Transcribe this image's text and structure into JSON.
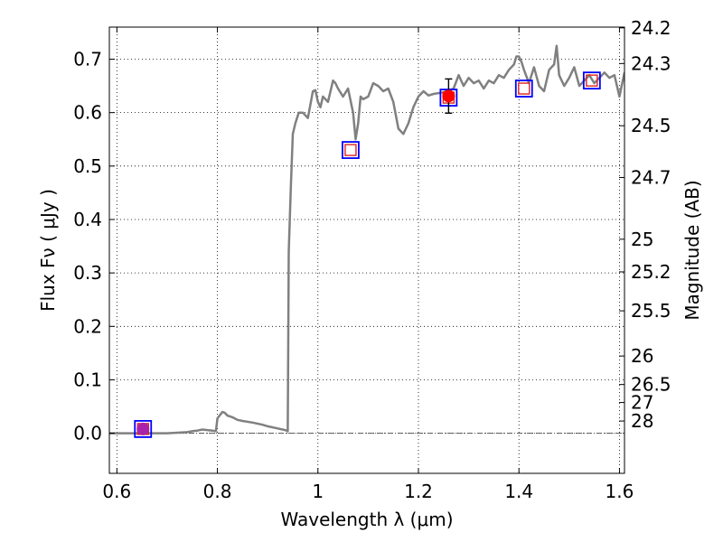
{
  "chart_data": {
    "type": "line",
    "xlabel": "Wavelength  λ (μm)",
    "ylabel": "Flux  Fν  ( μJy )",
    "ylabel_right": "Magnitude (AB)",
    "xlim": [
      0.585,
      1.61
    ],
    "ylim": [
      -0.075,
      0.76
    ],
    "grid": true,
    "x_ticks": [
      {
        "value": 0.6,
        "label": "0.6"
      },
      {
        "value": 0.8,
        "label": "0.8"
      },
      {
        "value": 1.0,
        "label": "1"
      },
      {
        "value": 1.2,
        "label": "1.2"
      },
      {
        "value": 1.4,
        "label": "1.4"
      },
      {
        "value": 1.6,
        "label": "1.6"
      }
    ],
    "y_ticks": [
      {
        "value": 0.0,
        "label": "0.0"
      },
      {
        "value": 0.1,
        "label": "0.1"
      },
      {
        "value": 0.2,
        "label": "0.2"
      },
      {
        "value": 0.3,
        "label": "0.3"
      },
      {
        "value": 0.4,
        "label": "0.4"
      },
      {
        "value": 0.5,
        "label": "0.5"
      },
      {
        "value": 0.6,
        "label": "0.6"
      },
      {
        "value": 0.7,
        "label": "0.7"
      }
    ],
    "magnitude_ticks": [
      {
        "mag": 24.2,
        "label": "24.2"
      },
      {
        "mag": 24.3,
        "label": "24.3"
      },
      {
        "mag": 24.5,
        "label": "24.5"
      },
      {
        "mag": 24.7,
        "label": "24.7"
      },
      {
        "mag": 25.0,
        "label": "25"
      },
      {
        "mag": 25.2,
        "label": "25.2"
      },
      {
        "mag": 25.5,
        "label": "25.5"
      },
      {
        "mag": 26.0,
        "label": "26"
      },
      {
        "mag": 26.5,
        "label": "26.5"
      },
      {
        "mag": 27.0,
        "label": "27"
      },
      {
        "mag": 28.0,
        "label": "28"
      }
    ],
    "series": [
      {
        "kind": "spectrum",
        "color": "#808080",
        "x": [
          0.585,
          0.6,
          0.65,
          0.7,
          0.72,
          0.74,
          0.75,
          0.76,
          0.77,
          0.78,
          0.79,
          0.797,
          0.8,
          0.81,
          0.815,
          0.82,
          0.83,
          0.84,
          0.85,
          0.87,
          0.89,
          0.9,
          0.92,
          0.935,
          0.94,
          0.942,
          0.946,
          0.95,
          0.955,
          0.962,
          0.97,
          0.98,
          0.99,
          0.995,
          1.0,
          1.005,
          1.01,
          1.02,
          1.03,
          1.035,
          1.04,
          1.05,
          1.06,
          1.07,
          1.075,
          1.08,
          1.085,
          1.09,
          1.1,
          1.11,
          1.12,
          1.13,
          1.14,
          1.15,
          1.16,
          1.17,
          1.18,
          1.19,
          1.2,
          1.21,
          1.22,
          1.23,
          1.25,
          1.27,
          1.28,
          1.29,
          1.3,
          1.31,
          1.32,
          1.33,
          1.34,
          1.35,
          1.36,
          1.37,
          1.38,
          1.39,
          1.395,
          1.4,
          1.405,
          1.41,
          1.42,
          1.43,
          1.44,
          1.45,
          1.46,
          1.47,
          1.475,
          1.48,
          1.49,
          1.5,
          1.51,
          1.52,
          1.53,
          1.54,
          1.55,
          1.56,
          1.57,
          1.58,
          1.59,
          1.6,
          1.61
        ],
        "y": [
          0.0,
          0.0,
          0.0,
          0.0,
          0.001,
          0.002,
          0.004,
          0.005,
          0.007,
          0.006,
          0.005,
          0.004,
          0.028,
          0.04,
          0.038,
          0.033,
          0.03,
          0.025,
          0.023,
          0.02,
          0.016,
          0.013,
          0.009,
          0.006,
          0.004,
          0.34,
          0.46,
          0.56,
          0.58,
          0.6,
          0.6,
          0.59,
          0.64,
          0.642,
          0.62,
          0.61,
          0.63,
          0.62,
          0.66,
          0.655,
          0.645,
          0.63,
          0.645,
          0.6,
          0.55,
          0.58,
          0.63,
          0.625,
          0.63,
          0.655,
          0.65,
          0.64,
          0.645,
          0.62,
          0.57,
          0.56,
          0.58,
          0.61,
          0.63,
          0.64,
          0.632,
          0.635,
          0.638,
          0.645,
          0.67,
          0.65,
          0.665,
          0.655,
          0.66,
          0.645,
          0.66,
          0.655,
          0.67,
          0.665,
          0.68,
          0.69,
          0.705,
          0.705,
          0.695,
          0.68,
          0.655,
          0.685,
          0.65,
          0.64,
          0.68,
          0.69,
          0.725,
          0.67,
          0.65,
          0.665,
          0.685,
          0.65,
          0.66,
          0.67,
          0.655,
          0.665,
          0.675,
          0.665,
          0.67,
          0.63,
          0.675
        ]
      },
      {
        "kind": "model_photometry",
        "color": "#0000ff",
        "marker": "open-square",
        "x": [
          0.652,
          1.065,
          1.26,
          1.41,
          1.545
        ],
        "y": [
          0.008,
          0.53,
          0.628,
          0.645,
          0.66
        ]
      },
      {
        "kind": "synthetic_photometry",
        "color": "#dd2222",
        "marker": "open-square-small",
        "x": [
          0.652,
          1.065,
          1.26,
          1.41,
          1.545
        ],
        "y": [
          0.008,
          0.53,
          0.628,
          0.645,
          0.66
        ]
      },
      {
        "kind": "observed",
        "color": "#ff0000",
        "marker": "filled-circle",
        "x": [
          1.26
        ],
        "y": [
          0.631
        ],
        "yerr": [
          0.032
        ]
      },
      {
        "kind": "observed",
        "color": "#aa22aa",
        "marker": "filled-circle",
        "x": [
          0.652
        ],
        "y": [
          0.008
        ],
        "yerr": [
          0.008
        ]
      }
    ]
  }
}
